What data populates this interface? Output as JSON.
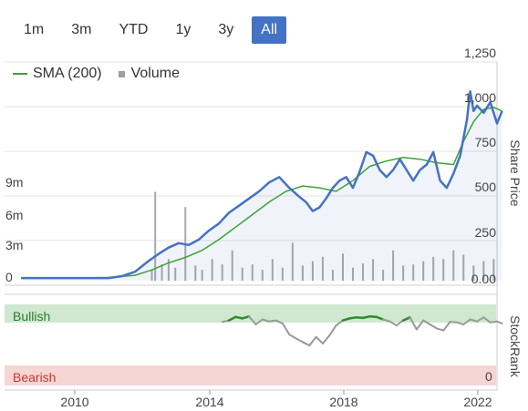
{
  "range_buttons": [
    {
      "label": "1m"
    },
    {
      "label": "3m"
    },
    {
      "label": "YTD"
    },
    {
      "label": "1y"
    },
    {
      "label": "3y"
    },
    {
      "label": "All",
      "active": true
    }
  ],
  "legend": {
    "sma_label": "SMA (200)",
    "volume_label": "Volume"
  },
  "colors": {
    "price": "#4472c4",
    "sma": "#3aa335",
    "volume": "#aaaaaa",
    "bullish_band": "#cfe8cf",
    "bearish_band": "#f6d5d5",
    "rank_green": "#2e8b2e",
    "rank_grey": "#999999"
  },
  "price_axis": {
    "label": "Share Price",
    "ticks": [
      "1,250",
      "1,000",
      "750",
      "500",
      "250",
      "0.00"
    ]
  },
  "volume_axis": {
    "ticks": [
      "9m",
      "6m",
      "3m",
      "0"
    ]
  },
  "stockrank_axis": {
    "label": "StockRank",
    "top_label": "Bullish",
    "bottom_label": "Bearish",
    "bottom_value": "0"
  },
  "x_axis": {
    "ticks": [
      "2010",
      "2014",
      "2018",
      "2022"
    ]
  },
  "chart_data": {
    "type": "line",
    "ylabel": "Share Price",
    "ylim": [
      0,
      1250
    ],
    "series": [
      {
        "name": "Price",
        "x": [
          2008.4,
          2009.0,
          2010.0,
          2011.0,
          2011.4,
          2011.8,
          2012.2,
          2012.5,
          2012.8,
          2013.1,
          2013.4,
          2013.7,
          2014.0,
          2014.3,
          2014.6,
          2014.9,
          2015.2,
          2015.5,
          2015.8,
          2016.1,
          2016.4,
          2016.7,
          2016.9,
          2017.1,
          2017.3,
          2017.5,
          2017.7,
          2017.9,
          2018.1,
          2018.3,
          2018.5,
          2018.7,
          2018.9,
          2019.1,
          2019.3,
          2019.5,
          2019.7,
          2019.9,
          2020.1,
          2020.3,
          2020.5,
          2020.7,
          2020.9,
          2021.1,
          2021.3,
          2021.5,
          2021.7,
          2021.8,
          2021.9,
          2022.0,
          2022.2,
          2022.4,
          2022.6,
          2022.75
        ],
        "y": [
          15,
          15,
          15,
          15,
          25,
          50,
          110,
          150,
          185,
          210,
          200,
          230,
          280,
          320,
          380,
          420,
          460,
          500,
          550,
          580,
          520,
          470,
          440,
          390,
          410,
          460,
          520,
          560,
          580,
          520,
          610,
          720,
          700,
          620,
          580,
          620,
          680,
          620,
          560,
          620,
          650,
          720,
          560,
          520,
          600,
          700,
          900,
          1060,
          950,
          980,
          940,
          1000,
          880,
          950
        ]
      },
      {
        "name": "SMA (200)",
        "x": [
          2008.4,
          2010.0,
          2011.0,
          2011.8,
          2012.3,
          2012.8,
          2013.3,
          2013.8,
          2014.3,
          2014.8,
          2015.3,
          2015.8,
          2016.3,
          2016.8,
          2017.3,
          2017.8,
          2018.3,
          2018.8,
          2019.3,
          2019.8,
          2020.3,
          2020.8,
          2021.3,
          2021.6,
          2021.9,
          2022.2,
          2022.5,
          2022.75
        ],
        "y": [
          15,
          15,
          18,
          30,
          60,
          100,
          130,
          170,
          230,
          300,
          370,
          440,
          500,
          530,
          520,
          500,
          560,
          640,
          670,
          690,
          680,
          660,
          650,
          780,
          890,
          960,
          970,
          950
        ]
      }
    ],
    "volume": {
      "unit": "m",
      "ylim": [
        0,
        10
      ],
      "x": [
        2012.3,
        2012.4,
        2012.6,
        2012.8,
        2013.0,
        2013.3,
        2013.6,
        2013.8,
        2014.1,
        2014.4,
        2014.7,
        2015.0,
        2015.3,
        2015.6,
        2015.9,
        2016.2,
        2016.5,
        2016.8,
        2017.1,
        2017.4,
        2017.7,
        2018.0,
        2018.3,
        2018.6,
        2018.9,
        2019.2,
        2019.5,
        2019.8,
        2020.1,
        2020.4,
        2020.7,
        2021.0,
        2021.3,
        2021.6,
        2021.9,
        2022.2,
        2022.5
      ],
      "values": [
        1.0,
        8.2,
        1.5,
        2.0,
        1.2,
        6.8,
        1.4,
        1.0,
        2.0,
        1.5,
        2.8,
        1.2,
        1.5,
        1.0,
        2.0,
        1.2,
        3.5,
        1.4,
        1.8,
        2.2,
        1.0,
        2.5,
        1.2,
        1.6,
        2.0,
        1.0,
        2.8,
        1.4,
        1.5,
        1.8,
        2.2,
        2.0,
        2.8,
        2.4,
        1.4,
        1.8,
        2.0
      ]
    },
    "stockrank": {
      "ylim": [
        0,
        100
      ],
      "x": [
        2014.4,
        2014.6,
        2014.8,
        2015.0,
        2015.2,
        2015.4,
        2015.6,
        2015.8,
        2016.0,
        2016.2,
        2016.4,
        2016.6,
        2016.8,
        2017.0,
        2017.2,
        2017.4,
        2017.6,
        2017.8,
        2018.0,
        2018.2,
        2018.4,
        2018.6,
        2018.8,
        2019.0,
        2019.2,
        2019.4,
        2019.6,
        2019.8,
        2020.0,
        2020.2,
        2020.4,
        2020.6,
        2020.8,
        2021.0,
        2021.2,
        2021.4,
        2021.6,
        2021.8,
        2022.0,
        2022.2,
        2022.4,
        2022.6,
        2022.75
      ],
      "y": [
        85,
        88,
        95,
        92,
        96,
        80,
        90,
        86,
        88,
        82,
        60,
        52,
        45,
        38,
        55,
        42,
        58,
        78,
        88,
        92,
        94,
        93,
        96,
        95,
        90,
        86,
        78,
        88,
        94,
        70,
        88,
        80,
        72,
        68,
        85,
        84,
        80,
        90,
        86,
        94,
        84,
        86,
        82
      ]
    }
  }
}
